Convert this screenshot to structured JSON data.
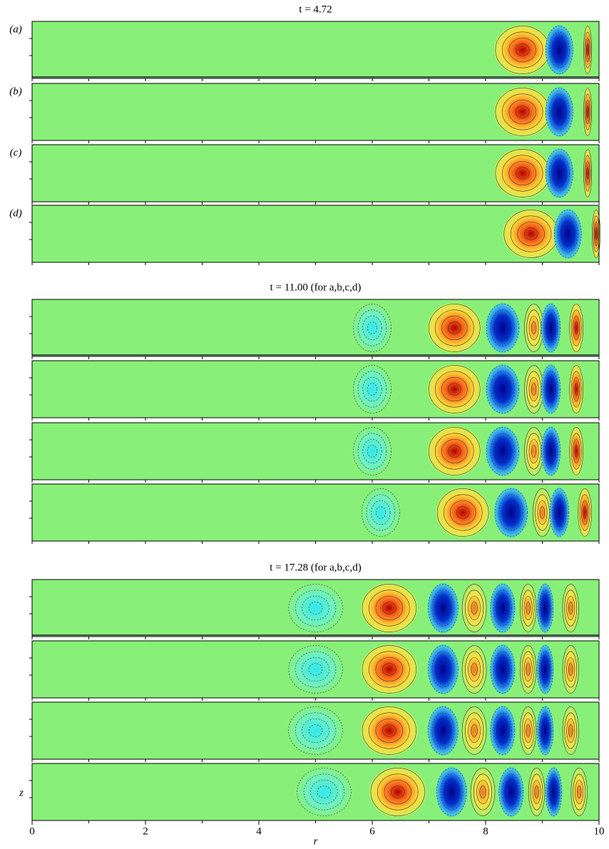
{
  "figure": {
    "groups": [
      {
        "title": "t = 4.72",
        "panel_labels": [
          "(a)",
          "(b)",
          "(c)",
          "(d)"
        ]
      },
      {
        "title": "t = 11.00 (for a,b,c,d)"
      },
      {
        "title": "t = 17.28 (for a,b,c,d)"
      }
    ],
    "xlim": [
      0,
      10
    ],
    "xticks": [
      0,
      2,
      4,
      6,
      8,
      10
    ],
    "xlabel": "r",
    "ylabel": "z"
  }
}
